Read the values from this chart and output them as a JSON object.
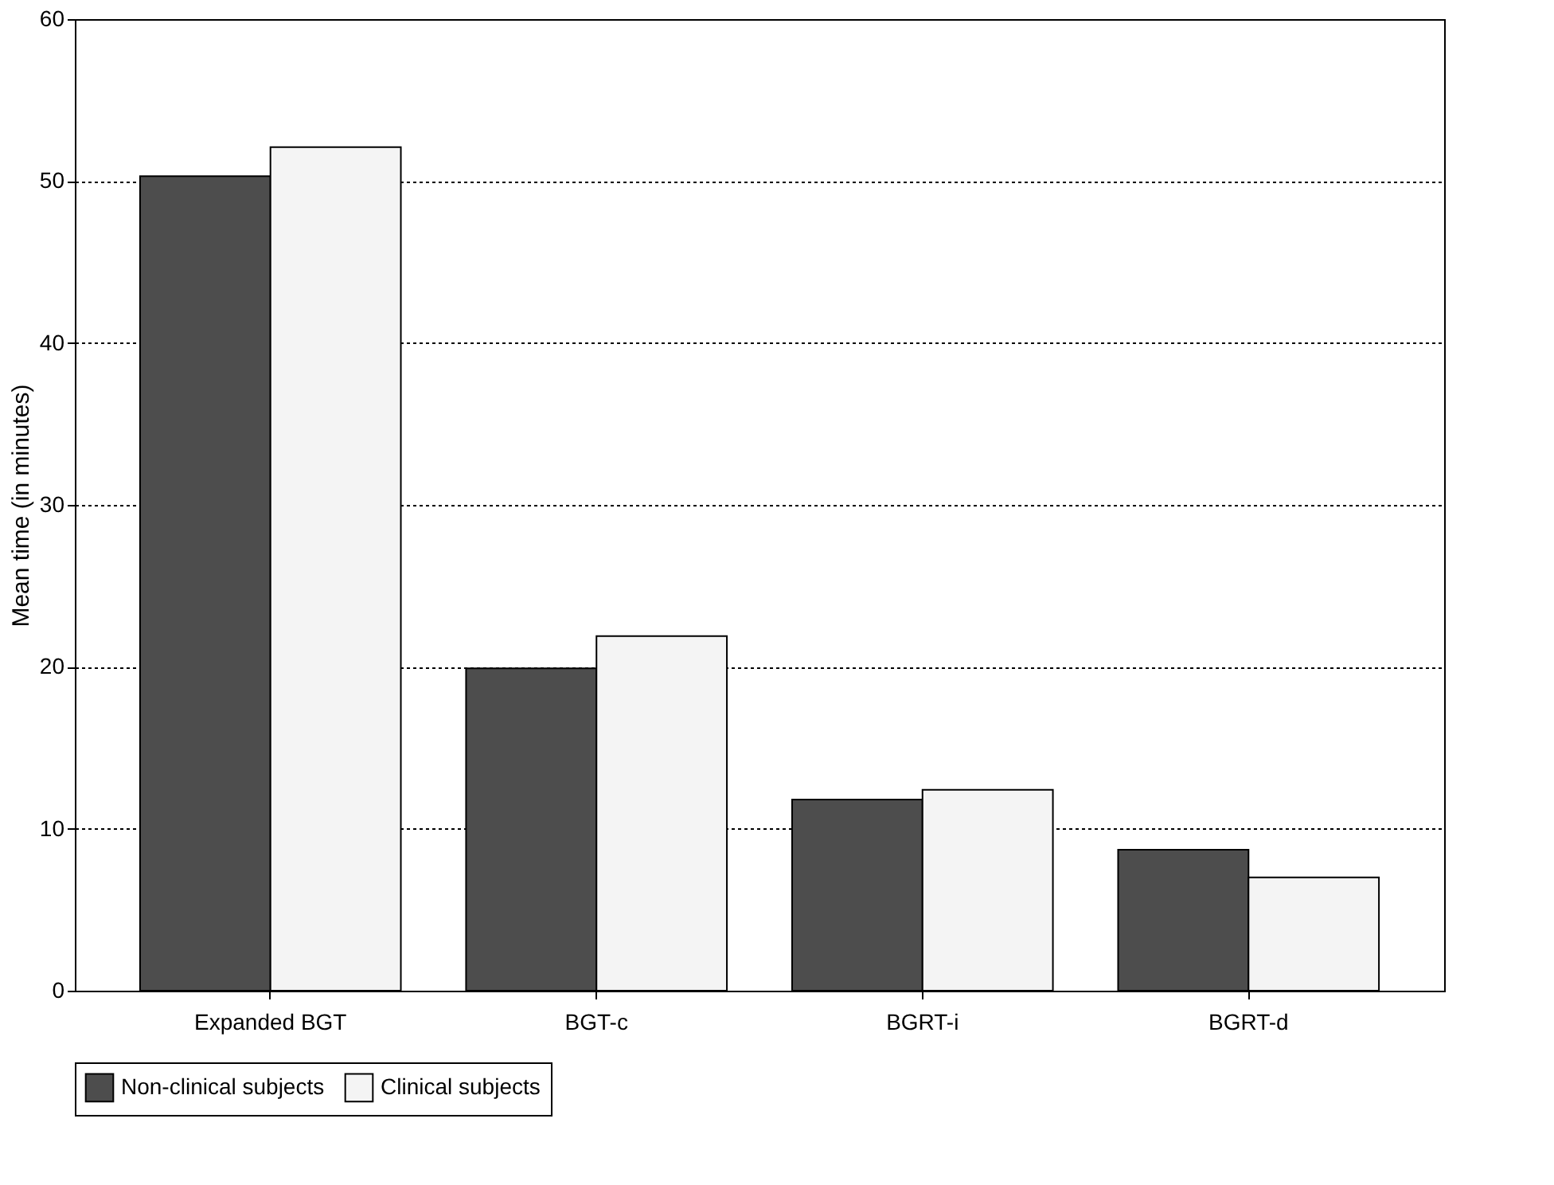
{
  "chart_data": {
    "type": "bar",
    "ylabel": "Mean time (in minutes)",
    "categories": [
      "Expanded BGT",
      "BGT-c",
      "BGRT-i",
      "BGRT-d"
    ],
    "series": [
      {
        "name": "Non-clinical subjects",
        "color": "#4d4d4d",
        "values": [
          50.3,
          19.9,
          11.8,
          8.7
        ]
      },
      {
        "name": "Clinical subjects",
        "color": "#f4f4f4",
        "values": [
          52.1,
          21.9,
          12.4,
          7.0
        ]
      }
    ],
    "ylim": [
      0,
      60
    ],
    "yticks": [
      0,
      10,
      20,
      30,
      40,
      50,
      60
    ],
    "grid": "y",
    "legend": "bottom"
  }
}
